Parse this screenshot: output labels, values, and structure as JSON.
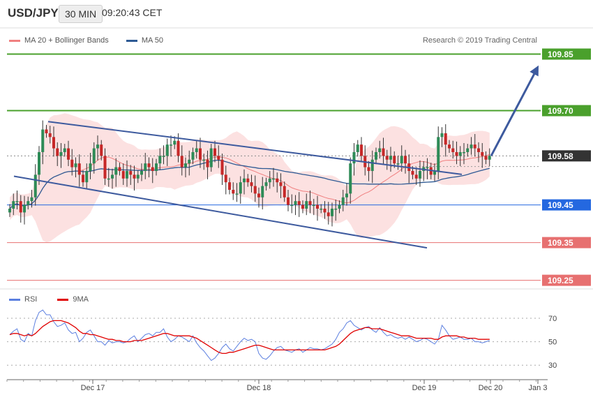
{
  "header": {
    "symbol": "USD/JPY",
    "timeframe": "30 MIN",
    "time": "09:20:43 CET"
  },
  "legend": {
    "bollinger_label": "MA 20 + Bollinger Bands",
    "ma50_label": "MA 50",
    "copyright": "Research © 2019 Trading Central",
    "colors": {
      "bollinger": "#f08080",
      "ma50": "#2e5a94"
    }
  },
  "rsi_legend": {
    "rsi_label": "RSI",
    "ma_label": "9MA",
    "colors": {
      "rsi": "#5b7fe0",
      "ma": "#e00000"
    }
  },
  "chart_data": [
    {
      "type": "candlestick",
      "title": "USD/JPY",
      "y_range": [
        109.21,
        109.89
      ],
      "levels": [
        {
          "value": 109.85,
          "label": "109.85",
          "kind": "resistance",
          "color": "#4aa02c"
        },
        {
          "value": 109.7,
          "label": "109.70",
          "kind": "resistance",
          "color": "#4aa02c"
        },
        {
          "value": 109.58,
          "label": "109.58",
          "kind": "last-price",
          "color": "#333333"
        },
        {
          "value": 109.45,
          "label": "109.45",
          "kind": "pivot",
          "color": "#2468e0"
        },
        {
          "value": 109.35,
          "label": "109.35",
          "kind": "support",
          "color": "#e77070"
        },
        {
          "value": 109.25,
          "label": "109.25",
          "kind": "support",
          "color": "#e77070"
        }
      ],
      "candles_close": [
        109.44,
        109.46,
        109.46,
        109.43,
        109.45,
        109.46,
        109.47,
        109.53,
        109.59,
        109.65,
        109.64,
        109.63,
        109.6,
        109.58,
        109.59,
        109.6,
        109.57,
        109.55,
        109.56,
        109.53,
        109.51,
        109.54,
        109.56,
        109.6,
        109.61,
        109.58,
        109.52,
        109.52,
        109.53,
        109.55,
        109.54,
        109.52,
        109.54,
        109.53,
        109.52,
        109.53,
        109.54,
        109.56,
        109.55,
        109.54,
        109.56,
        109.58,
        109.58,
        109.61,
        109.61,
        109.62,
        109.58,
        109.55,
        109.56,
        109.57,
        109.59,
        109.6,
        109.57,
        109.57,
        109.55,
        109.6,
        109.58,
        109.57,
        109.53,
        109.51,
        109.49,
        109.48,
        109.48,
        109.51,
        109.52,
        109.51,
        109.5,
        109.48,
        109.47,
        109.5,
        109.51,
        109.52,
        109.52,
        109.51,
        109.5,
        109.47,
        109.45,
        109.45,
        109.46,
        109.45,
        109.44,
        109.46,
        109.45,
        109.45,
        109.44,
        109.44,
        109.43,
        109.42,
        109.44,
        109.44,
        109.45,
        109.47,
        109.48,
        109.56,
        109.59,
        109.61,
        109.58,
        109.55,
        109.54,
        109.57,
        109.59,
        109.6,
        109.58,
        109.57,
        109.58,
        109.56,
        109.56,
        109.58,
        109.56,
        109.54,
        109.53,
        109.52,
        109.54,
        109.55,
        109.55,
        109.53,
        109.54,
        109.63,
        109.64,
        109.61,
        109.6,
        109.59,
        109.58,
        109.59,
        109.59,
        109.6,
        109.61,
        109.6,
        109.59,
        109.58,
        109.57,
        109.58
      ],
      "channel": {
        "upper": [
          [
            69,
            109.671
          ],
          [
            662,
            109.531
          ]
        ],
        "lower": [
          [
            20,
            109.526
          ],
          [
            612,
            109.336
          ]
        ]
      },
      "forecast_arrow": [
        [
          704,
          109.58
        ],
        [
          772,
          109.82
        ]
      ],
      "x_labels": [
        "Dec 17",
        "Dec 18",
        "Dec 19",
        "Dec 20",
        "Jan 3"
      ]
    },
    {
      "type": "line",
      "title": "RSI",
      "y_range": [
        20,
        80
      ],
      "y_ticks": [
        "70",
        "50",
        "30"
      ],
      "series": [
        {
          "name": "RSI",
          "values": [
            56,
            59,
            61,
            52,
            50,
            57,
            55,
            68,
            75,
            77,
            73,
            73,
            67,
            63,
            64,
            66,
            60,
            57,
            58,
            50,
            53,
            58,
            60,
            55,
            50,
            50,
            47,
            51,
            49,
            50,
            50,
            49,
            50,
            53,
            55,
            50,
            53,
            56,
            57,
            55,
            58,
            58,
            61,
            54,
            50,
            52,
            55,
            54,
            52,
            50,
            55,
            49,
            45,
            42,
            38,
            34,
            36,
            40,
            45,
            48,
            44,
            42,
            46,
            50,
            53,
            51,
            52,
            50,
            40,
            36,
            35,
            38,
            42,
            45,
            46,
            43,
            42,
            41,
            43,
            44,
            41,
            43,
            45,
            44,
            44,
            43,
            44,
            46,
            48,
            52,
            58,
            61,
            66,
            68,
            64,
            62,
            60,
            62,
            63,
            60,
            58,
            62,
            58,
            55,
            56,
            54,
            53,
            54,
            52,
            54,
            52,
            50,
            51,
            53,
            52,
            50,
            48,
            52,
            64,
            60,
            55,
            52,
            53,
            54,
            52,
            52,
            53,
            50,
            50,
            49,
            50,
            51
          ]
        },
        {
          "name": "9MA",
          "values": [
            56,
            57,
            57,
            56,
            55,
            56,
            55,
            57,
            60,
            63,
            65,
            67,
            68,
            68,
            68,
            67,
            66,
            64,
            62,
            59,
            57,
            57,
            56,
            56,
            55,
            54,
            53,
            52,
            52,
            51,
            51,
            50,
            50,
            50,
            51,
            51,
            51,
            52,
            53,
            54,
            55,
            56,
            57,
            57,
            56,
            55,
            55,
            55,
            55,
            55,
            54,
            53,
            51,
            49,
            47,
            45,
            43,
            41,
            40,
            40,
            41,
            41,
            42,
            43,
            44,
            45,
            46,
            47,
            47,
            46,
            45,
            44,
            43,
            43,
            43,
            43,
            43,
            43,
            43,
            43,
            43,
            43,
            43,
            43,
            43,
            43,
            43,
            44,
            45,
            46,
            48,
            51,
            54,
            57,
            59,
            60,
            61,
            62,
            62,
            61,
            61,
            61,
            60,
            59,
            58,
            57,
            56,
            55,
            55,
            55,
            54,
            53,
            53,
            53,
            53,
            53,
            52,
            52,
            54,
            55,
            55,
            55,
            55,
            54,
            54,
            53,
            53,
            53,
            52,
            52,
            52,
            52
          ]
        }
      ]
    }
  ]
}
